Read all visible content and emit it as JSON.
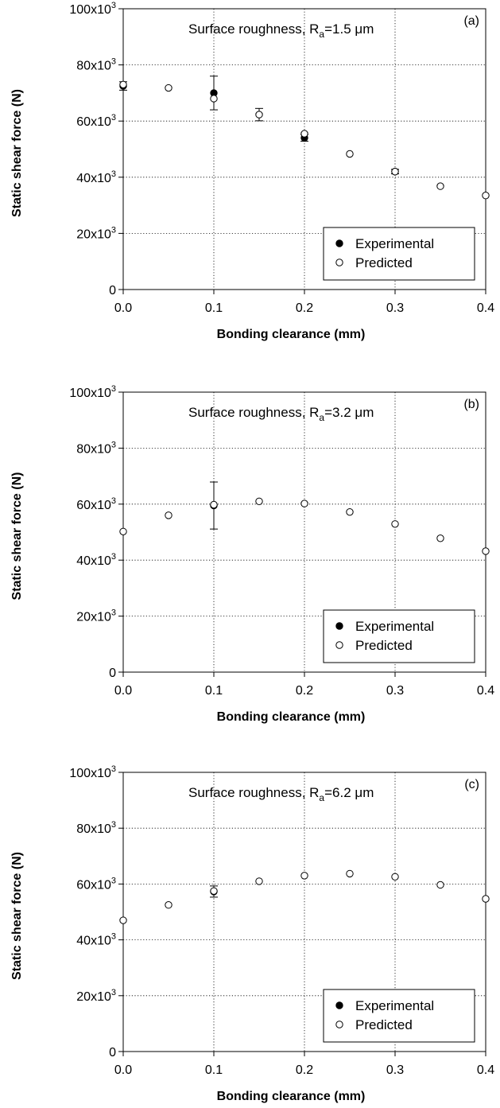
{
  "chart_data": [
    {
      "type": "scatter",
      "panel_label": "(a)",
      "annotation": {
        "prefix": "Surface roughness, R",
        "subscript": "a",
        "suffix": "=1.5 μm"
      },
      "xlabel": "Bonding clearance (mm)",
      "ylabel": "Static shear force (N)",
      "xlim": [
        0,
        0.4
      ],
      "ylim": [
        0,
        100000
      ],
      "x_ticks": [
        {
          "value": 0.0,
          "label": "0.0"
        },
        {
          "value": 0.1,
          "label": "0.1"
        },
        {
          "value": 0.2,
          "label": "0.2"
        },
        {
          "value": 0.3,
          "label": "0.3"
        },
        {
          "value": 0.4,
          "label": "0.4"
        }
      ],
      "y_ticks": [
        {
          "value": 0,
          "base": "0",
          "exp": ""
        },
        {
          "value": 20000,
          "base": "20x10",
          "exp": "3"
        },
        {
          "value": 40000,
          "base": "40x10",
          "exp": "3"
        },
        {
          "value": 60000,
          "base": "60x10",
          "exp": "3"
        },
        {
          "value": 80000,
          "base": "80x10",
          "exp": "3"
        },
        {
          "value": 100000,
          "base": "100x10",
          "exp": "3"
        }
      ],
      "grid": "dotted",
      "legend_position": "bottom-right",
      "series": [
        {
          "name": "Experimental",
          "marker": "filled-circle",
          "points": [
            {
              "x": 0.0,
              "y": 72500,
              "err": 1500
            },
            {
              "x": 0.1,
              "y": 70000,
              "err": 6000
            },
            {
              "x": 0.2,
              "y": 54000,
              "err": 1200
            },
            {
              "x": 0.3,
              "y": 42000,
              "err": 800
            }
          ]
        },
        {
          "name": "Predicted",
          "marker": "open-circle",
          "points": [
            {
              "x": 0.0,
              "y": 73000
            },
            {
              "x": 0.05,
              "y": 71800
            },
            {
              "x": 0.1,
              "y": 68000
            },
            {
              "x": 0.15,
              "y": 62300,
              "err": 2200
            },
            {
              "x": 0.2,
              "y": 55500
            },
            {
              "x": 0.25,
              "y": 48300
            },
            {
              "x": 0.3,
              "y": 42000
            },
            {
              "x": 0.35,
              "y": 36800
            },
            {
              "x": 0.4,
              "y": 33500
            }
          ]
        }
      ]
    },
    {
      "type": "scatter",
      "panel_label": "(b)",
      "annotation": {
        "prefix": "Surface roughness, R",
        "subscript": "a",
        "suffix": "=3.2 μm"
      },
      "xlabel": "Bonding clearance (mm)",
      "ylabel": "Static shear force (N)",
      "xlim": [
        0,
        0.4
      ],
      "ylim": [
        0,
        100000
      ],
      "x_ticks": [
        {
          "value": 0.0,
          "label": "0.0"
        },
        {
          "value": 0.1,
          "label": "0.1"
        },
        {
          "value": 0.2,
          "label": "0.2"
        },
        {
          "value": 0.3,
          "label": "0.3"
        },
        {
          "value": 0.4,
          "label": "0.4"
        }
      ],
      "y_ticks": [
        {
          "value": 0,
          "base": "0",
          "exp": ""
        },
        {
          "value": 20000,
          "base": "20x10",
          "exp": "3"
        },
        {
          "value": 40000,
          "base": "40x10",
          "exp": "3"
        },
        {
          "value": 60000,
          "base": "60x10",
          "exp": "3"
        },
        {
          "value": 80000,
          "base": "80x10",
          "exp": "3"
        },
        {
          "value": 100000,
          "base": "100x10",
          "exp": "3"
        }
      ],
      "grid": "dotted",
      "legend_position": "bottom-right",
      "series": [
        {
          "name": "Experimental",
          "marker": "filled-circle",
          "points": [
            {
              "x": 0.1,
              "y": 59500,
              "err": 8400
            }
          ]
        },
        {
          "name": "Predicted",
          "marker": "open-circle",
          "points": [
            {
              "x": 0.0,
              "y": 50200
            },
            {
              "x": 0.05,
              "y": 56000
            },
            {
              "x": 0.1,
              "y": 59800
            },
            {
              "x": 0.15,
              "y": 61000
            },
            {
              "x": 0.2,
              "y": 60200
            },
            {
              "x": 0.25,
              "y": 57200
            },
            {
              "x": 0.3,
              "y": 52900
            },
            {
              "x": 0.35,
              "y": 47800
            },
            {
              "x": 0.4,
              "y": 43200
            }
          ]
        }
      ]
    },
    {
      "type": "scatter",
      "panel_label": "(c)",
      "annotation": {
        "prefix": "Surface roughness, R",
        "subscript": "a",
        "suffix": "=6.2 μm"
      },
      "xlabel": "Bonding clearance (mm)",
      "ylabel": "Static shear force (N)",
      "xlim": [
        0,
        0.4
      ],
      "ylim": [
        0,
        100000
      ],
      "x_ticks": [
        {
          "value": 0.0,
          "label": "0.0"
        },
        {
          "value": 0.1,
          "label": "0.1"
        },
        {
          "value": 0.2,
          "label": "0.2"
        },
        {
          "value": 0.3,
          "label": "0.3"
        },
        {
          "value": 0.4,
          "label": "0.4"
        }
      ],
      "y_ticks": [
        {
          "value": 0,
          "base": "0",
          "exp": ""
        },
        {
          "value": 20000,
          "base": "20x10",
          "exp": "3"
        },
        {
          "value": 40000,
          "base": "40x10",
          "exp": "3"
        },
        {
          "value": 60000,
          "base": "60x10",
          "exp": "3"
        },
        {
          "value": 80000,
          "base": "80x10",
          "exp": "3"
        },
        {
          "value": 100000,
          "base": "100x10",
          "exp": "3"
        }
      ],
      "grid": "dotted",
      "legend_position": "bottom-right",
      "series": [
        {
          "name": "Experimental",
          "marker": "filled-circle",
          "points": [
            {
              "x": 0.1,
              "y": 57300,
              "err": 2000
            }
          ]
        },
        {
          "name": "Predicted",
          "marker": "open-circle",
          "points": [
            {
              "x": 0.0,
              "y": 47000
            },
            {
              "x": 0.05,
              "y": 52500
            },
            {
              "x": 0.1,
              "y": 57500
            },
            {
              "x": 0.15,
              "y": 61000
            },
            {
              "x": 0.2,
              "y": 63000
            },
            {
              "x": 0.25,
              "y": 63700
            },
            {
              "x": 0.3,
              "y": 62600
            },
            {
              "x": 0.35,
              "y": 59700
            },
            {
              "x": 0.4,
              "y": 54700
            }
          ]
        }
      ]
    }
  ],
  "style": {
    "ink_color": "#000000",
    "grid_color": "#000000",
    "filled_marker_color": "#000000",
    "open_marker_fill": "#ffffff",
    "background_color": "#ffffff"
  }
}
